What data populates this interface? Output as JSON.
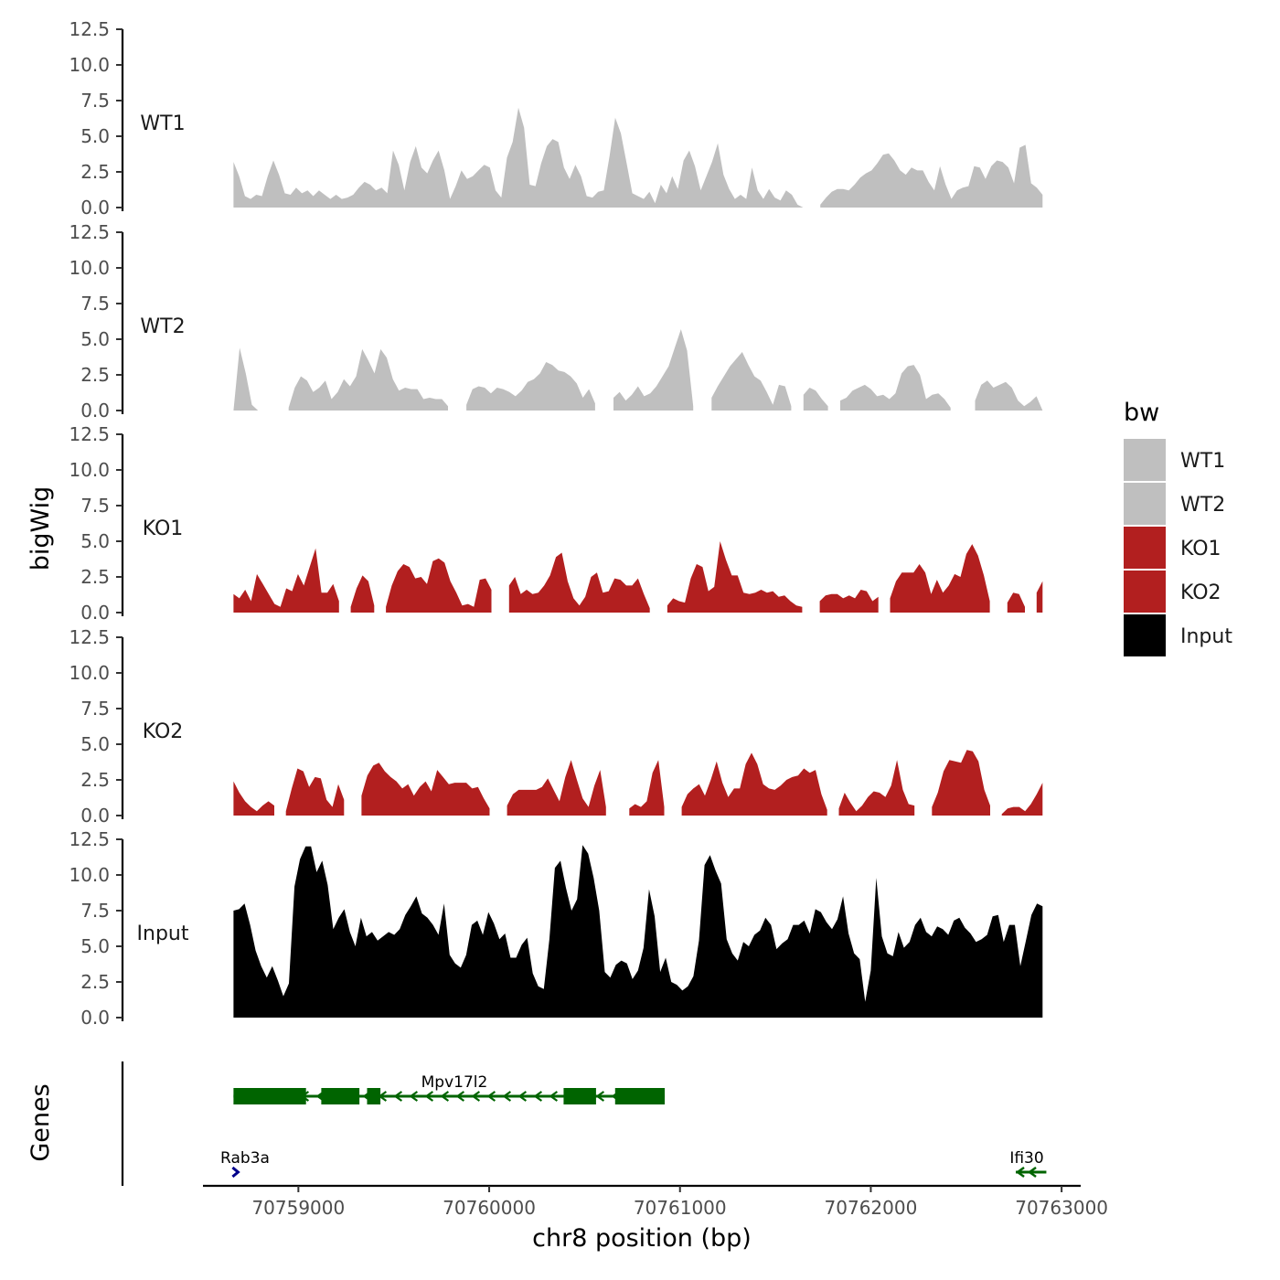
{
  "chart_data": {
    "type": "area",
    "title": "",
    "ylabel": "bigWig",
    "xlabel": "chr8 position (bp)",
    "xlim": [
      70758500,
      70763100
    ],
    "ylim": [
      0,
      12.5
    ],
    "y_ticks": [
      "0.0",
      "2.5",
      "5.0",
      "7.5",
      "10.0",
      "12.5"
    ],
    "x_ticks": [
      {
        "value": 70759000,
        "label": "70759000"
      },
      {
        "value": 70760000,
        "label": "70760000"
      },
      {
        "value": 70761000,
        "label": "70761000"
      },
      {
        "value": 70762000,
        "label": "70762000"
      },
      {
        "value": 70763000,
        "label": "70763000"
      }
    ],
    "data_range": [
      70758660,
      70762900
    ],
    "legend_title": "bw",
    "legend": [
      {
        "name": "WT1",
        "color": "#bfbfbf"
      },
      {
        "name": "WT2",
        "color": "#bfbfbf"
      },
      {
        "name": "KO1",
        "color": "#b21f1f"
      },
      {
        "name": "KO2",
        "color": "#b21f1f"
      },
      {
        "name": "Input",
        "color": "#000000"
      }
    ],
    "series": [
      {
        "name": "WT1",
        "color": "#bfbfbf",
        "values": [
          3.2,
          2.2,
          0.8,
          0.6,
          0.9,
          0.8,
          2.2,
          3.3,
          2.3,
          1.0,
          0.9,
          1.4,
          1.0,
          1.2,
          0.8,
          1.2,
          0.9,
          0.6,
          0.9,
          0.6,
          0.7,
          0.9,
          1.4,
          1.8,
          1.6,
          1.2,
          1.4,
          1.0,
          4.0,
          3.0,
          1.2,
          3.2,
          4.3,
          2.8,
          2.4,
          3.3,
          4.0,
          2.6,
          0.6,
          1.5,
          2.6,
          2.0,
          2.2,
          2.6,
          3.0,
          2.8,
          1.2,
          0.7,
          3.5,
          4.6,
          7.0,
          5.6,
          1.6,
          1.5,
          3.1,
          4.3,
          4.8,
          4.6,
          2.8,
          2.0,
          3.0,
          2.2,
          0.8,
          0.7,
          1.1,
          1.2,
          3.6,
          6.3,
          5.2,
          3.1,
          1.0,
          0.8,
          0.6,
          1.1,
          0.3,
          1.6,
          1.0,
          2.2,
          1.3,
          3.3,
          4.0,
          2.9,
          1.2,
          2.2,
          3.2,
          4.5,
          2.3,
          1.3,
          0.6,
          0.9,
          0.6,
          2.8,
          1.2,
          0.6,
          1.3,
          0.7,
          0.5,
          1.2,
          0.9,
          0.2,
          0.0,
          -1,
          -1,
          0.2,
          0.7,
          1.1,
          1.3,
          1.3,
          1.2,
          1.6,
          2.1,
          2.4,
          2.6,
          3.1,
          3.7,
          3.8,
          3.3,
          2.6,
          2.3,
          2.8,
          2.6,
          2.6,
          1.8,
          1.2,
          2.9,
          1.6,
          0.6,
          1.2,
          1.4,
          1.5,
          2.9,
          2.8,
          2.0,
          2.9,
          3.3,
          3.2,
          2.8,
          1.7,
          4.2,
          4.4,
          1.7,
          1.4,
          0.9
        ]
      },
      {
        "name": "WT2",
        "color": "#bfbfbf",
        "values": [
          0.0,
          4.4,
          2.6,
          0.4,
          0.0,
          -1,
          -1,
          -1,
          -1,
          0.2,
          1.6,
          2.4,
          2.1,
          1.3,
          1.6,
          2.1,
          0.8,
          1.3,
          2.2,
          1.7,
          2.4,
          4.3,
          3.5,
          2.6,
          4.3,
          3.7,
          2.2,
          1.4,
          1.6,
          1.5,
          1.5,
          0.8,
          0.9,
          0.8,
          0.8,
          0.3,
          -1,
          -1,
          0.4,
          1.5,
          1.7,
          1.6,
          1.2,
          1.6,
          1.5,
          1.3,
          1.0,
          1.4,
          2.0,
          2.2,
          2.6,
          3.4,
          3.2,
          2.8,
          2.7,
          2.4,
          1.9,
          0.9,
          1.5,
          0.5,
          -1,
          -1,
          0.9,
          1.3,
          0.7,
          1.1,
          1.7,
          1.0,
          1.2,
          1.7,
          2.4,
          3.1,
          4.4,
          5.7,
          4.2,
          0.3,
          -1,
          -1,
          0.9,
          1.7,
          2.4,
          3.1,
          3.6,
          4.1,
          3.2,
          2.4,
          2.1,
          1.3,
          0.4,
          1.8,
          1.7,
          0.3,
          -1,
          1.1,
          1.6,
          1.4,
          0.8,
          0.3,
          -1,
          0.7,
          0.9,
          1.4,
          1.6,
          1.8,
          1.5,
          1.0,
          1.1,
          0.8,
          1.2,
          2.6,
          3.1,
          3.2,
          2.5,
          0.8,
          1.1,
          1.2,
          0.8,
          0.2,
          -1,
          -1,
          -1,
          0.7,
          1.8,
          2.1,
          1.6,
          1.8,
          2.0,
          1.6,
          0.7,
          0.3,
          0.6,
          1.0,
          0.0
        ]
      },
      {
        "name": "KO1",
        "color": "#b21f1f",
        "values": [
          1.3,
          1.0,
          1.6,
          0.8,
          2.7,
          2.0,
          1.3,
          0.6,
          0.4,
          1.7,
          1.5,
          2.7,
          1.9,
          3.2,
          4.5,
          1.4,
          1.4,
          2.0,
          0.8,
          -1,
          0.4,
          1.7,
          2.6,
          2.2,
          0.5,
          -1,
          0.4,
          1.9,
          2.9,
          3.4,
          3.2,
          2.4,
          2.5,
          2.0,
          3.6,
          3.8,
          3.5,
          2.2,
          1.4,
          0.5,
          0.6,
          0.4,
          2.3,
          2.4,
          1.6,
          -1,
          -1,
          1.9,
          2.5,
          1.3,
          1.6,
          1.3,
          1.4,
          1.9,
          2.6,
          3.9,
          4.2,
          2.2,
          1.0,
          0.5,
          1.1,
          2.5,
          2.8,
          1.4,
          1.5,
          2.4,
          2.3,
          1.9,
          1.9,
          2.4,
          1.3,
          0.3,
          -1,
          -1,
          0.5,
          1.0,
          0.8,
          0.7,
          2.4,
          3.4,
          3.2,
          1.5,
          1.8,
          5.0,
          3.7,
          2.6,
          2.6,
          1.4,
          1.3,
          1.4,
          1.6,
          1.4,
          1.5,
          1.1,
          1.2,
          0.8,
          0.5,
          0.4,
          -1,
          -1,
          0.8,
          1.2,
          1.3,
          1.3,
          1.0,
          1.2,
          1.0,
          1.6,
          1.5,
          0.8,
          1.1,
          -1,
          1.0,
          2.2,
          2.8,
          2.8,
          2.8,
          3.4,
          2.8,
          1.3,
          2.3,
          1.4,
          1.9,
          2.7,
          2.5,
          4.1,
          4.8,
          4.0,
          2.6,
          0.8,
          -1,
          -1,
          0.7,
          1.4,
          1.3,
          0.4,
          -1,
          1.4,
          2.2
        ]
      },
      {
        "name": "KO2",
        "color": "#b21f1f",
        "values": [
          2.4,
          1.6,
          1.0,
          0.6,
          0.3,
          0.7,
          1.0,
          0.7,
          -1,
          0.3,
          1.9,
          3.3,
          3.1,
          2.0,
          2.7,
          2.6,
          1.1,
          0.6,
          2.2,
          1.1,
          -1,
          -1,
          1.4,
          2.8,
          3.5,
          3.7,
          3.1,
          2.7,
          2.4,
          1.9,
          2.2,
          1.4,
          2.0,
          2.4,
          1.7,
          3.2,
          2.7,
          2.2,
          2.3,
          2.3,
          2.3,
          1.9,
          2.0,
          1.2,
          0.5,
          -1,
          -1,
          0.7,
          1.5,
          1.8,
          1.8,
          1.8,
          1.8,
          2.0,
          2.6,
          1.8,
          1.0,
          2.7,
          3.9,
          2.5,
          1.2,
          0.6,
          2.1,
          3.2,
          0.6,
          -1,
          -1,
          -1,
          0.5,
          0.8,
          0.6,
          1.0,
          3.0,
          3.9,
          0.6,
          -1,
          -1,
          0.6,
          1.5,
          1.9,
          2.2,
          1.4,
          2.5,
          3.8,
          2.3,
          1.3,
          1.9,
          1.9,
          3.6,
          4.4,
          3.6,
          2.2,
          1.9,
          1.8,
          2.1,
          2.5,
          2.7,
          2.8,
          3.3,
          3.0,
          3.2,
          1.5,
          0.4,
          -1,
          0.5,
          1.6,
          0.9,
          0.3,
          0.7,
          1.3,
          1.7,
          1.6,
          1.3,
          2.1,
          3.9,
          1.8,
          0.8,
          0.7,
          -1,
          -1,
          0.6,
          1.6,
          3.1,
          3.9,
          3.8,
          3.7,
          4.6,
          4.5,
          3.8,
          1.8,
          0.7,
          -1,
          0.1,
          0.5,
          0.6,
          0.6,
          0.3,
          0.8,
          1.5,
          2.3
        ]
      },
      {
        "name": "Input",
        "color": "#000000",
        "values": [
          7.5,
          7.6,
          8.0,
          6.5,
          4.7,
          3.6,
          2.8,
          3.6,
          2.6,
          1.5,
          2.4,
          9.2,
          11.1,
          12.0,
          12.0,
          10.2,
          11.0,
          9.3,
          6.2,
          7.0,
          7.6,
          6.0,
          5.0,
          7.0,
          5.7,
          6.0,
          5.4,
          5.7,
          6.0,
          5.8,
          6.2,
          7.2,
          7.8,
          8.5,
          7.3,
          7.0,
          6.5,
          5.8,
          8.0,
          4.4,
          3.8,
          3.5,
          4.4,
          6.5,
          6.8,
          5.8,
          7.4,
          6.6,
          5.5,
          5.9,
          4.2,
          4.2,
          5.1,
          5.6,
          3.1,
          2.2,
          2.0,
          5.5,
          10.5,
          11.0,
          9.1,
          7.5,
          8.3,
          12.1,
          11.5,
          9.8,
          7.5,
          3.2,
          2.8,
          3.7,
          4.0,
          3.8,
          2.7,
          3.3,
          4.9,
          9.0,
          7.1,
          3.2,
          4.2,
          2.5,
          2.3,
          1.9,
          2.2,
          2.9,
          5.4,
          10.7,
          11.4,
          10.3,
          9.4,
          5.5,
          4.5,
          4.0,
          5.3,
          5.0,
          5.8,
          6.1,
          7.0,
          6.5,
          4.8,
          5.2,
          5.5,
          6.5,
          6.5,
          6.8,
          5.9,
          7.6,
          7.4,
          6.7,
          6.2,
          6.9,
          8.5,
          5.9,
          4.5,
          4.1,
          1.1,
          3.3,
          9.8,
          5.7,
          4.5,
          4.3,
          6.0,
          4.9,
          5.3,
          6.5,
          7.0,
          6.0,
          5.7,
          6.4,
          6.2,
          5.8,
          6.8,
          7.0,
          6.3,
          5.9,
          5.3,
          5.5,
          5.8,
          7.1,
          7.2,
          5.3,
          6.5,
          6.5,
          3.6,
          5.4,
          7.2,
          8.0,
          7.8
        ]
      }
    ]
  },
  "genes": {
    "panel_label": "Genes",
    "list": [
      {
        "name": "Mpv17l2",
        "start": 70758660,
        "end": 70760920,
        "strand": "-",
        "color": "#006400",
        "exons": [
          [
            70758660,
            70759040
          ],
          [
            70759120,
            70759320
          ],
          [
            70759360,
            70759430
          ],
          [
            70760390,
            70760560
          ],
          [
            70760660,
            70760920
          ]
        ]
      },
      {
        "name": "Rab3a",
        "start": 70758660,
        "end": 70758680,
        "strand": "+",
        "color": "#00008b",
        "exons": []
      },
      {
        "name": "Ifi30",
        "start": 70762760,
        "end": 70762920,
        "strand": "-",
        "color": "#006400",
        "exons": []
      }
    ]
  }
}
